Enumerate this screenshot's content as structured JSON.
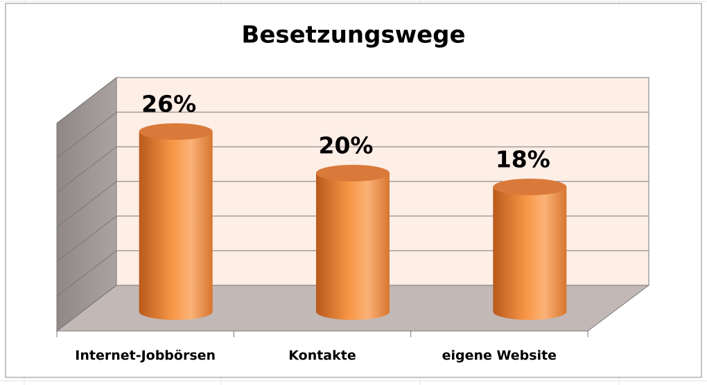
{
  "chart_data": {
    "type": "bar",
    "title": "Besetzungswege",
    "categories": [
      "Internet-Jobbörsen",
      "Kontakte",
      "eigene Website"
    ],
    "values": [
      26,
      20,
      18
    ],
    "value_labels": [
      "26%",
      "20%",
      "18%"
    ],
    "color": "#f79646",
    "ylim": [
      0,
      30
    ],
    "yticks": [
      0,
      5,
      10,
      15,
      20,
      25,
      30
    ],
    "grid": true
  }
}
